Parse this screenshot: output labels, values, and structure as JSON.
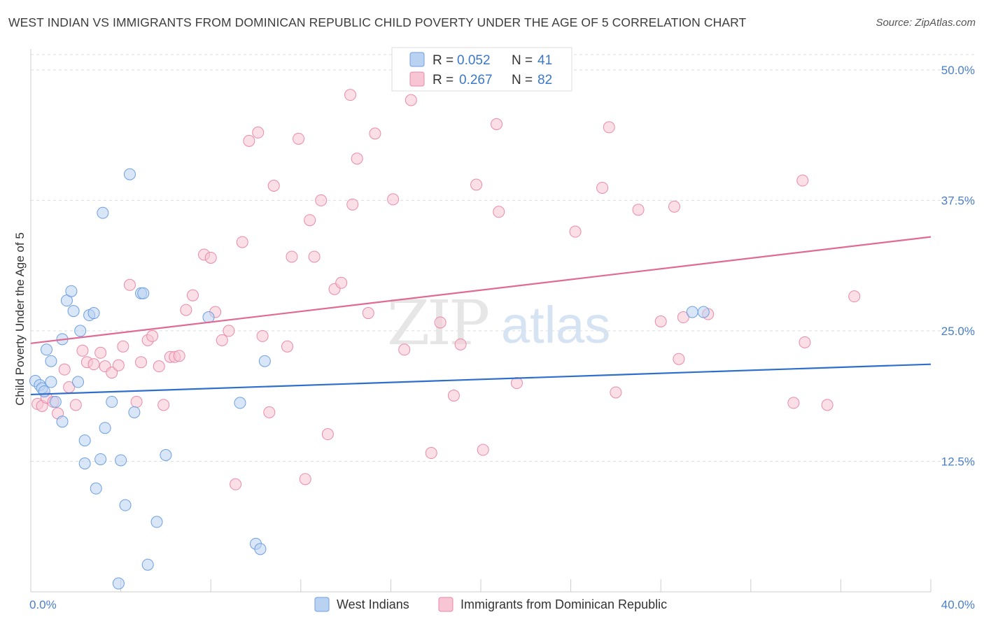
{
  "title": "WEST INDIAN VS IMMIGRANTS FROM DOMINICAN REPUBLIC CHILD POVERTY UNDER THE AGE OF 5 CORRELATION CHART",
  "source": "Source: ZipAtlas.com",
  "colors": {
    "west_indians": "#6d9fe0",
    "west_indians_fill": "#b9d2f2",
    "west_indians_line": "#2e6fcb",
    "dominican": "#e98aa9",
    "dominican_fill": "#f7c5d4",
    "dominican_line": "#e06a93",
    "axis_label": "#4a7fc9",
    "grid": "#dddddd"
  },
  "legend": {
    "r_label": "R =",
    "n_label": "N =",
    "series1_r": "0.052",
    "series1_n": "41",
    "series2_r": "0.267",
    "series2_n": "82"
  },
  "chart_data": {
    "type": "scatter",
    "xlabel": "",
    "ylabel": "Child Poverty Under the Age of 5",
    "xlim": [
      0,
      40
    ],
    "ylim": [
      0,
      52
    ],
    "x_tick_labels": [
      "0.0%",
      "40.0%"
    ],
    "y_ticks": [
      12.5,
      25.0,
      37.5,
      50.0
    ],
    "y_tick_labels": [
      "12.5%",
      "25.0%",
      "37.5%",
      "50.0%"
    ],
    "watermark": "ZIPatlas",
    "series": [
      {
        "name": "West Indians",
        "r": 0.052,
        "n": 41,
        "trend": {
          "x": [
            0,
            40
          ],
          "y": [
            18.9,
            21.8
          ]
        },
        "points": [
          {
            "x": 0.2,
            "y": 20.2
          },
          {
            "x": 0.4,
            "y": 19.8
          },
          {
            "x": 0.5,
            "y": 19.5
          },
          {
            "x": 0.6,
            "y": 19.2
          },
          {
            "x": 0.7,
            "y": 23.2
          },
          {
            "x": 0.9,
            "y": 22.1
          },
          {
            "x": 0.9,
            "y": 20.1
          },
          {
            "x": 1.1,
            "y": 18.2
          },
          {
            "x": 1.4,
            "y": 16.3
          },
          {
            "x": 1.4,
            "y": 24.2
          },
          {
            "x": 1.6,
            "y": 27.9
          },
          {
            "x": 1.8,
            "y": 28.8
          },
          {
            "x": 1.9,
            "y": 26.9
          },
          {
            "x": 2.1,
            "y": 20.1
          },
          {
            "x": 2.2,
            "y": 25.0
          },
          {
            "x": 2.4,
            "y": 14.5
          },
          {
            "x": 2.4,
            "y": 12.3
          },
          {
            "x": 2.6,
            "y": 26.5
          },
          {
            "x": 2.8,
            "y": 26.7
          },
          {
            "x": 2.9,
            "y": 9.9
          },
          {
            "x": 3.1,
            "y": 12.7
          },
          {
            "x": 3.2,
            "y": 36.3
          },
          {
            "x": 3.3,
            "y": 15.7
          },
          {
            "x": 3.6,
            "y": 18.2
          },
          {
            "x": 3.9,
            "y": 0.8
          },
          {
            "x": 4.0,
            "y": 12.6
          },
          {
            "x": 4.2,
            "y": 8.3
          },
          {
            "x": 4.4,
            "y": 40.0
          },
          {
            "x": 4.6,
            "y": 17.2
          },
          {
            "x": 4.9,
            "y": 28.6
          },
          {
            "x": 5.0,
            "y": 28.6
          },
          {
            "x": 5.2,
            "y": 2.6
          },
          {
            "x": 5.6,
            "y": 6.7
          },
          {
            "x": 6.0,
            "y": 13.1
          },
          {
            "x": 7.9,
            "y": 26.3
          },
          {
            "x": 9.3,
            "y": 18.1
          },
          {
            "x": 10.0,
            "y": 4.6
          },
          {
            "x": 10.2,
            "y": 4.1
          },
          {
            "x": 10.4,
            "y": 22.1
          },
          {
            "x": 29.4,
            "y": 26.8
          },
          {
            "x": 29.9,
            "y": 26.8
          }
        ]
      },
      {
        "name": "Immigrants from Dominican Republic",
        "r": 0.267,
        "n": 82,
        "trend": {
          "x": [
            0,
            40
          ],
          "y": [
            23.8,
            34.0
          ]
        },
        "points": [
          {
            "x": 0.3,
            "y": 18.0
          },
          {
            "x": 0.5,
            "y": 17.8
          },
          {
            "x": 0.7,
            "y": 18.6
          },
          {
            "x": 1.0,
            "y": 18.2
          },
          {
            "x": 1.2,
            "y": 17.1
          },
          {
            "x": 1.5,
            "y": 21.3
          },
          {
            "x": 1.7,
            "y": 19.6
          },
          {
            "x": 2.0,
            "y": 17.9
          },
          {
            "x": 2.3,
            "y": 23.1
          },
          {
            "x": 2.5,
            "y": 22.0
          },
          {
            "x": 2.8,
            "y": 21.8
          },
          {
            "x": 3.1,
            "y": 22.9
          },
          {
            "x": 3.3,
            "y": 21.6
          },
          {
            "x": 3.6,
            "y": 21.0
          },
          {
            "x": 3.9,
            "y": 21.7
          },
          {
            "x": 4.1,
            "y": 23.5
          },
          {
            "x": 4.4,
            "y": 29.4
          },
          {
            "x": 4.7,
            "y": 18.2
          },
          {
            "x": 4.9,
            "y": 22.0
          },
          {
            "x": 5.2,
            "y": 24.1
          },
          {
            "x": 5.4,
            "y": 24.5
          },
          {
            "x": 5.7,
            "y": 21.6
          },
          {
            "x": 5.9,
            "y": 17.9
          },
          {
            "x": 6.2,
            "y": 22.5
          },
          {
            "x": 6.4,
            "y": 22.5
          },
          {
            "x": 6.6,
            "y": 22.6
          },
          {
            "x": 6.9,
            "y": 27.0
          },
          {
            "x": 7.2,
            "y": 28.4
          },
          {
            "x": 7.7,
            "y": 32.3
          },
          {
            "x": 8.0,
            "y": 32.0
          },
          {
            "x": 8.2,
            "y": 26.8
          },
          {
            "x": 8.5,
            "y": 24.1
          },
          {
            "x": 8.8,
            "y": 25.0
          },
          {
            "x": 9.1,
            "y": 10.3
          },
          {
            "x": 9.4,
            "y": 33.5
          },
          {
            "x": 9.7,
            "y": 43.2
          },
          {
            "x": 10.1,
            "y": 44.0
          },
          {
            "x": 10.3,
            "y": 24.5
          },
          {
            "x": 10.6,
            "y": 17.2
          },
          {
            "x": 10.8,
            "y": 38.9
          },
          {
            "x": 11.4,
            "y": 23.5
          },
          {
            "x": 11.6,
            "y": 32.1
          },
          {
            "x": 11.9,
            "y": 43.4
          },
          {
            "x": 12.2,
            "y": 10.8
          },
          {
            "x": 12.4,
            "y": 35.6
          },
          {
            "x": 12.6,
            "y": 32.1
          },
          {
            "x": 12.9,
            "y": 37.5
          },
          {
            "x": 13.2,
            "y": 15.1
          },
          {
            "x": 13.5,
            "y": 29.0
          },
          {
            "x": 13.8,
            "y": 29.6
          },
          {
            "x": 14.3,
            "y": 37.1
          },
          {
            "x": 14.2,
            "y": 47.6
          },
          {
            "x": 14.5,
            "y": 41.5
          },
          {
            "x": 15.0,
            "y": 26.7
          },
          {
            "x": 15.3,
            "y": 43.9
          },
          {
            "x": 16.1,
            "y": 37.6
          },
          {
            "x": 16.6,
            "y": 23.2
          },
          {
            "x": 16.9,
            "y": 47.1
          },
          {
            "x": 17.8,
            "y": 13.3
          },
          {
            "x": 18.2,
            "y": 25.8
          },
          {
            "x": 18.8,
            "y": 18.8
          },
          {
            "x": 19.1,
            "y": 23.7
          },
          {
            "x": 19.8,
            "y": 39.0
          },
          {
            "x": 20.1,
            "y": 13.6
          },
          {
            "x": 20.8,
            "y": 36.4
          },
          {
            "x": 20.7,
            "y": 44.8
          },
          {
            "x": 21.6,
            "y": 20.0
          },
          {
            "x": 24.2,
            "y": 34.5
          },
          {
            "x": 25.4,
            "y": 38.7
          },
          {
            "x": 25.7,
            "y": 44.5
          },
          {
            "x": 26.0,
            "y": 19.1
          },
          {
            "x": 27.0,
            "y": 36.6
          },
          {
            "x": 28.0,
            "y": 25.9
          },
          {
            "x": 28.6,
            "y": 36.9
          },
          {
            "x": 28.8,
            "y": 22.3
          },
          {
            "x": 29.0,
            "y": 26.3
          },
          {
            "x": 30.1,
            "y": 26.6
          },
          {
            "x": 33.9,
            "y": 18.1
          },
          {
            "x": 34.3,
            "y": 39.4
          },
          {
            "x": 34.4,
            "y": 23.9
          },
          {
            "x": 35.4,
            "y": 17.9
          },
          {
            "x": 36.6,
            "y": 28.3
          }
        ]
      }
    ]
  }
}
